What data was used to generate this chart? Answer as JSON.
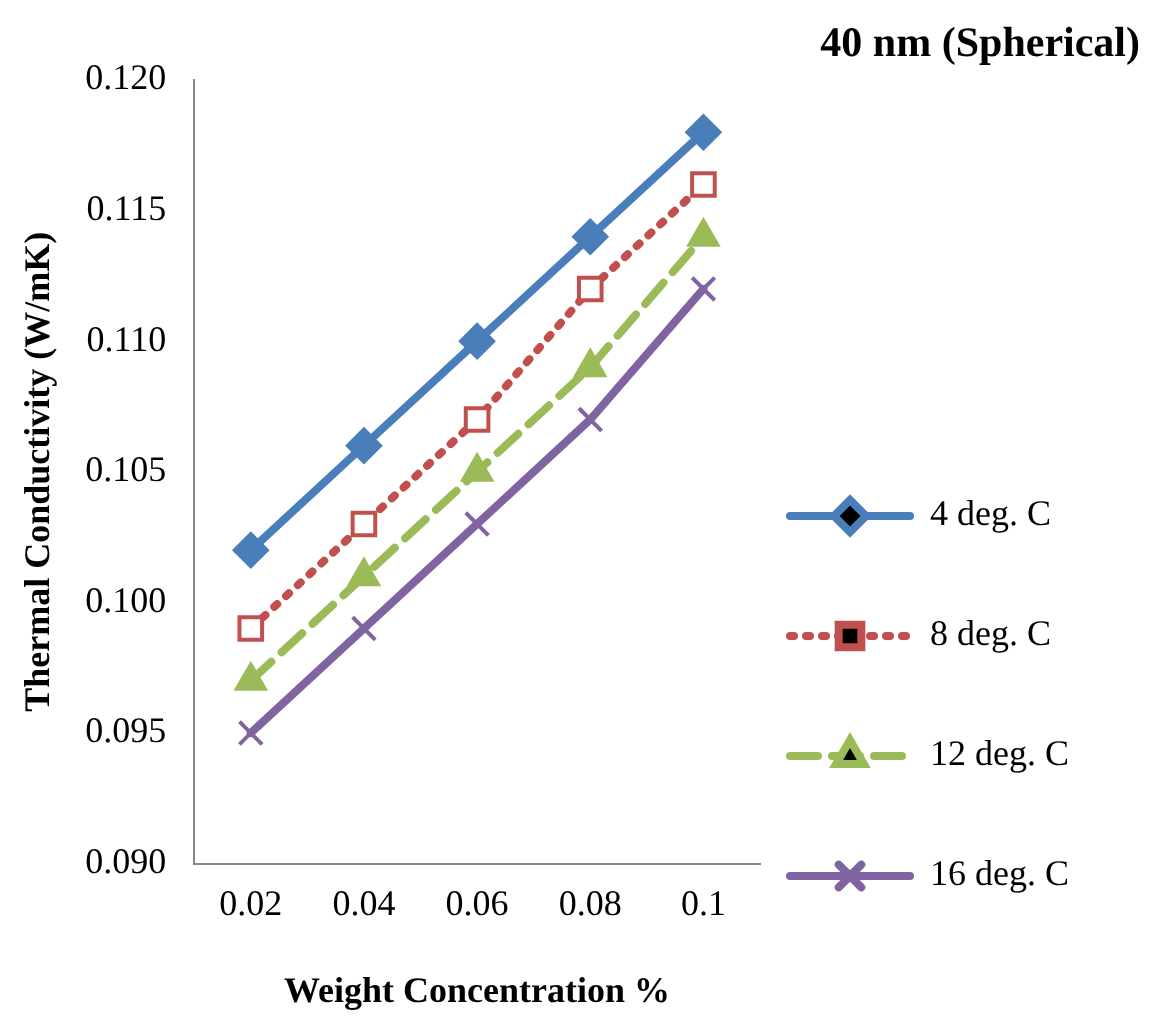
{
  "chart_data": {
    "type": "line",
    "title": "40 nm (Spherical)",
    "xlabel": "Weight Concentration %",
    "ylabel": "Thermal Conductivity (W/mK)",
    "categories": [
      "0.02",
      "0.04",
      "0.06",
      "0.08",
      "0.1"
    ],
    "ylim": [
      0.09,
      0.12
    ],
    "yticks": [
      {
        "value": 0.09,
        "label": "0.090"
      },
      {
        "value": 0.095,
        "label": "0.095"
      },
      {
        "value": 0.1,
        "label": "0.100"
      },
      {
        "value": 0.105,
        "label": "0.105"
      },
      {
        "value": 0.11,
        "label": "0.110"
      },
      {
        "value": 0.115,
        "label": "0.115"
      },
      {
        "value": 0.12,
        "label": "0.120"
      }
    ],
    "grid": false,
    "legend": "right",
    "series": [
      {
        "name": "4 deg. C",
        "color": "#4a7ebb",
        "marker": "diamond",
        "line_style": "solid",
        "values": [
          0.102,
          0.106,
          0.11,
          0.114,
          0.118
        ]
      },
      {
        "name": "8 deg. C",
        "color": "#c0504d",
        "marker": "square",
        "line_style": "dotted",
        "values": [
          0.099,
          0.103,
          0.107,
          0.112,
          0.116
        ]
      },
      {
        "name": "12 deg. C",
        "color": "#9bbb59",
        "marker": "triangle",
        "line_style": "dashed",
        "values": [
          0.097,
          0.101,
          0.105,
          0.109,
          0.114
        ]
      },
      {
        "name": "16 deg. C",
        "color": "#8064a2",
        "marker": "cross",
        "line_style": "solid",
        "values": [
          0.095,
          0.099,
          0.103,
          0.107,
          0.112
        ]
      }
    ]
  }
}
